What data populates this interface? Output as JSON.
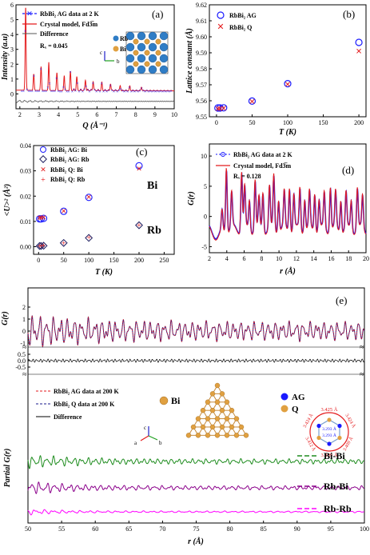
{
  "colors": {
    "data_blue": "#1a1aff",
    "model_red": "#e41a1c",
    "diff_gray": "#555555",
    "rb_blue": "#2f7dc6",
    "bi_orange": "#e0a040",
    "bibi_green": "#1e8c1e",
    "rbbi_purple": "#8b008b",
    "rbrb_magenta": "#ff00ff",
    "lattice_bond": "#c58a3a"
  },
  "chart_data": [
    {
      "id": "a",
      "panel_label": "(a)",
      "type": "line",
      "xlabel": "Q (Å⁻¹)",
      "ylabel": "Intensity (a.u)",
      "xlim": [
        1.8,
        10
      ],
      "ylim": [
        -1,
        6
      ],
      "xticks": [
        "2",
        "3",
        "4",
        "5",
        "6",
        "7",
        "8",
        "9",
        "10"
      ],
      "yticks": [
        "0",
        "1",
        "2",
        "3",
        "4",
        "5",
        "6"
      ],
      "legend": [
        "RbBi₂ AG data at 2 K",
        "Crystal model, Fd3̅m",
        "Difference"
      ],
      "rw_label": "Rₓ = 0.045",
      "inset_labels": [
        "Rb",
        "Bi"
      ],
      "axis_labels": [
        "c",
        "b",
        "a"
      ],
      "peaks": [
        {
          "q": 2.3,
          "h": 5.6
        },
        {
          "q": 2.72,
          "h": 1.1
        },
        {
          "q": 3.1,
          "h": 1.6
        },
        {
          "q": 3.5,
          "h": 1.9
        },
        {
          "q": 3.92,
          "h": 1.2
        },
        {
          "q": 4.3,
          "h": 1.0
        },
        {
          "q": 4.62,
          "h": 1.3
        },
        {
          "q": 4.95,
          "h": 0.9
        },
        {
          "q": 5.4,
          "h": 0.7
        },
        {
          "q": 5.8,
          "h": 0.6
        },
        {
          "q": 6.25,
          "h": 0.5
        },
        {
          "q": 6.7,
          "h": 0.45
        },
        {
          "q": 7.2,
          "h": 0.35
        },
        {
          "q": 7.7,
          "h": 0.3
        },
        {
          "q": 8.3,
          "h": 0.25
        }
      ],
      "baseline": 0.2,
      "difference_offset": -0.5
    },
    {
      "id": "b",
      "panel_label": "(b)",
      "type": "scatter",
      "xlabel": "T (K)",
      "ylabel": "Lattice constant (Å)",
      "xlim": [
        -10,
        210
      ],
      "ylim": [
        9.55,
        9.62
      ],
      "xticks": [
        "0",
        "50",
        "100",
        "150",
        "200"
      ],
      "yticks": [
        "9.55",
        "9.56",
        "9.57",
        "9.58",
        "9.59",
        "9.60",
        "9.61",
        "9.62"
      ],
      "series": [
        {
          "name": "RbBi₂ AG",
          "marker": "circle",
          "x": [
            2,
            5,
            10,
            50,
            100,
            200
          ],
          "y": [
            9.5555,
            9.5555,
            9.5556,
            9.5598,
            9.5707,
            9.5965
          ]
        },
        {
          "name": "RbBi₂ Q",
          "marker": "cross",
          "x": [
            2,
            5,
            10,
            50,
            100,
            200
          ],
          "y": [
            9.5552,
            9.5553,
            9.5554,
            9.5597,
            9.5705,
            9.5912
          ]
        }
      ]
    },
    {
      "id": "c",
      "panel_label": "(c)",
      "type": "scatter",
      "xlabel": "T (K)",
      "ylabel": "<U>² (Å²)",
      "xlim": [
        -10,
        270
      ],
      "ylim": [
        -0.003,
        0.04
      ],
      "xticks": [
        "0",
        "50",
        "100",
        "150",
        "200",
        "250"
      ],
      "yticks": [
        "0.00",
        "0.01",
        "0.02",
        "0.03",
        "0.04"
      ],
      "element_labels": [
        "Bi",
        "Rb"
      ],
      "series": [
        {
          "name": "RbBi₂ AG: Bi",
          "marker": "circle",
          "x": [
            2,
            5,
            10,
            50,
            100,
            200
          ],
          "y": [
            0.011,
            0.011,
            0.0112,
            0.014,
            0.0195,
            0.032
          ]
        },
        {
          "name": "RbBi₂ AG: Rb",
          "marker": "diamond",
          "x": [
            2,
            5,
            10,
            50,
            100,
            200
          ],
          "y": [
            0.0003,
            0.0003,
            0.0004,
            0.0015,
            0.0035,
            0.0085
          ]
        },
        {
          "name": "RbBi₂ Q: Bi",
          "marker": "cross",
          "x": [
            2,
            5,
            10,
            50,
            100,
            200
          ],
          "y": [
            0.0115,
            0.0115,
            0.0117,
            0.0142,
            0.0198,
            0.031
          ]
        },
        {
          "name": "RbBi₂ Q: Rb",
          "marker": "plus",
          "x": [
            2,
            5,
            10,
            50,
            100,
            200
          ],
          "y": [
            0.0003,
            0.0003,
            0.0004,
            0.0015,
            0.0036,
            0.0086
          ]
        }
      ]
    },
    {
      "id": "d",
      "panel_label": "(d)",
      "type": "line",
      "xlabel": "r (Å)",
      "ylabel": "G(r)",
      "xlim": [
        2,
        20
      ],
      "ylim": [
        -6,
        12
      ],
      "xticks": [
        "2",
        "4",
        "6",
        "8",
        "10",
        "12",
        "14",
        "16",
        "18",
        "20"
      ],
      "yticks": [
        "-5",
        "0",
        "5",
        "10"
      ],
      "legend": [
        "RbBi₂ AG data at 2 K",
        "Crystal model, Fd3̅m"
      ],
      "rw_label": "Rₓ = 0.128"
    },
    {
      "id": "e",
      "panel_label": "(e)",
      "type": "line",
      "xlabel": "r (Å)",
      "ylabel_top": "G(r)",
      "ylabel_bottom": "Partial G(r)",
      "xlim": [
        50,
        100
      ],
      "xticks": [
        "50",
        "55",
        "60",
        "65",
        "70",
        "75",
        "80",
        "85",
        "90",
        "95",
        "100"
      ],
      "yticks_top": [
        "-1",
        "0",
        "1",
        "2"
      ],
      "yticks_diff": [
        "-0.5",
        "0.0",
        "0.5"
      ],
      "legend": [
        "RbBi₂ AG data at 200 K",
        "RbBi₂ Q data at 200 K",
        "Difference"
      ],
      "partial_labels": [
        "Bi-Bi",
        "Rb-Bi",
        "Rb-Rb"
      ],
      "bi_label": "Bi",
      "site_legend": [
        "AG",
        "Q"
      ],
      "hex_distances": [
        "3.425 Å",
        "3.424 Å",
        "3.409 Å",
        "3.299 Å",
        "3.412 Å",
        "3.424 Å"
      ],
      "hex_center": [
        "3.293 Å",
        "3.293 Å"
      ],
      "axis_labels": [
        "c",
        "a",
        "b"
      ]
    }
  ]
}
